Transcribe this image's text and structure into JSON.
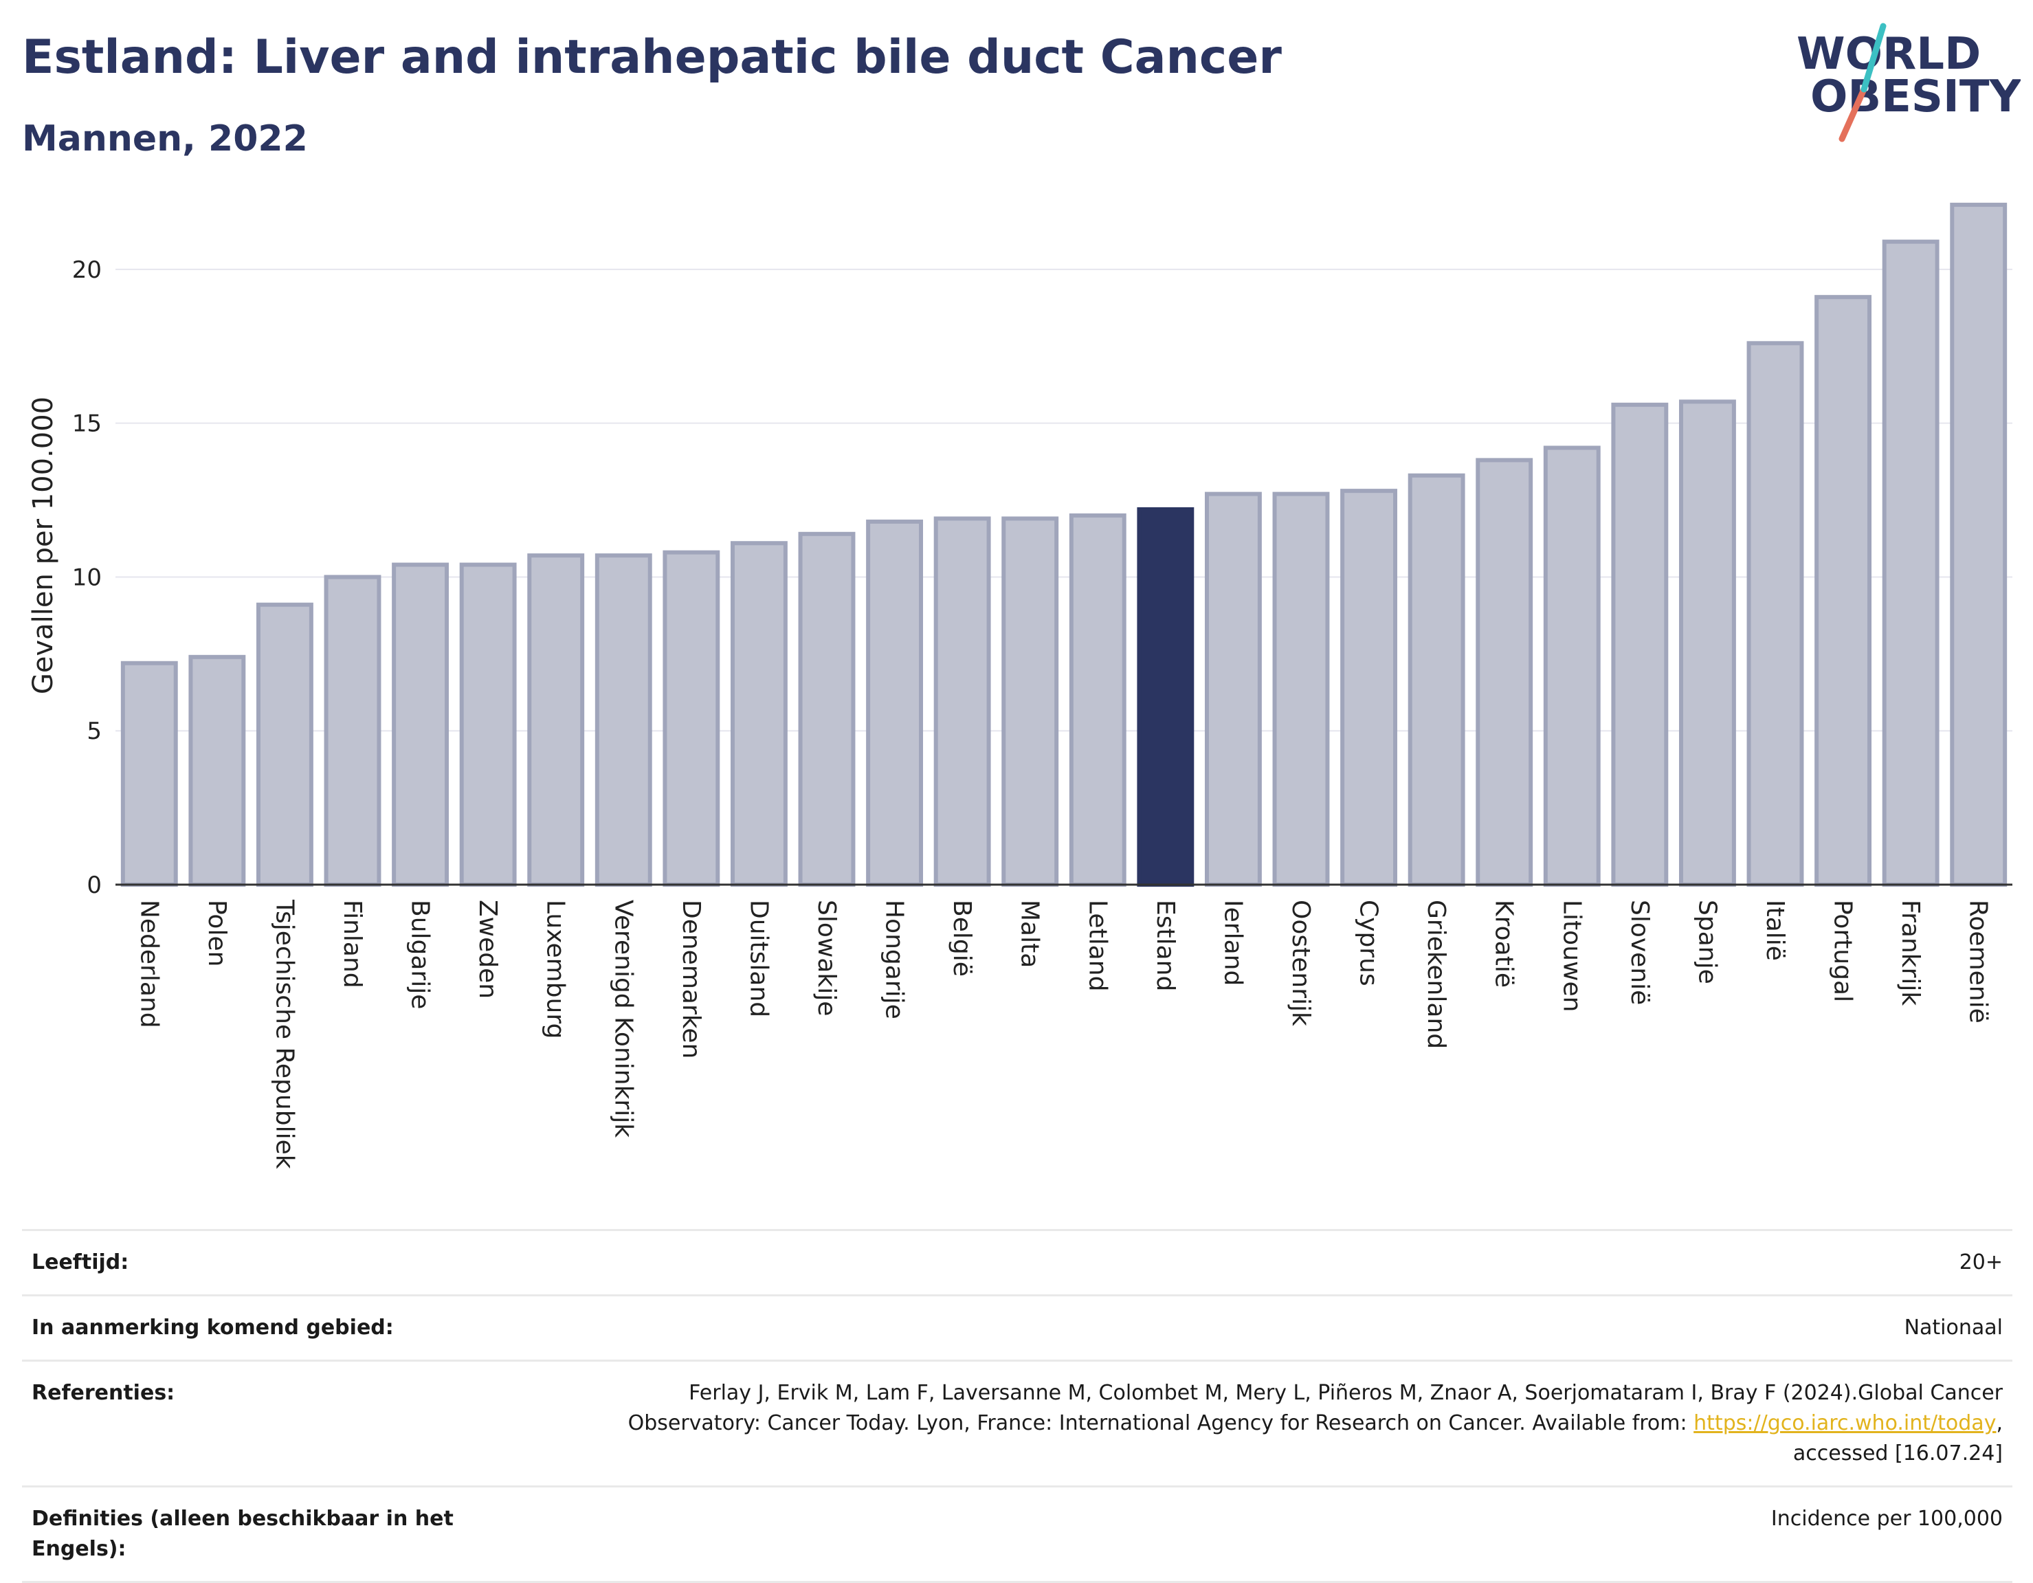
{
  "header": {
    "title": "Estland: Liver and intrahepatic bile duct Cancer",
    "subtitle": "Mannen, 2022"
  },
  "logo": {
    "line1": "WORLD",
    "line2": "OBESITY"
  },
  "colors": {
    "highlight": "#2b3561",
    "bar": "#bfc2d0",
    "bar_stroke": "#a0a5bb",
    "grid": "#e6e6ee"
  },
  "chart_data": {
    "type": "bar",
    "ylabel": "Gevallen per 100.000",
    "xlabel": "",
    "ylim": [
      0,
      22.5
    ],
    "yticks": [
      0,
      5,
      10,
      15,
      20
    ],
    "grid": true,
    "highlight": "Estland",
    "categories": [
      "Nederland",
      "Polen",
      "Tsjechische Republiek",
      "Finland",
      "Bulgarije",
      "Zweden",
      "Luxemburg",
      "Verenigd Koninkrijk",
      "Denemarken",
      "Duitsland",
      "Slowakije",
      "Hongarije",
      "België",
      "Malta",
      "Letland",
      "Estland",
      "Ierland",
      "Oostenrijk",
      "Cyprus",
      "Griekenland",
      "Kroatië",
      "Litouwen",
      "Slovenië",
      "Spanje",
      "Italië",
      "Portugal",
      "Frankrijk",
      "Roemenië"
    ],
    "values": [
      7.2,
      7.4,
      9.1,
      10.0,
      10.4,
      10.4,
      10.7,
      10.7,
      10.8,
      11.1,
      11.4,
      11.8,
      11.9,
      11.9,
      12.0,
      12.2,
      12.7,
      12.7,
      12.8,
      13.3,
      13.8,
      14.2,
      15.6,
      15.7,
      17.6,
      19.1,
      20.9,
      22.1
    ]
  },
  "meta": {
    "age_label": "Leeftijd:",
    "age_value": "20+",
    "area_label": "In aanmerking komend gebied:",
    "area_value": "Nationaal",
    "ref_label": "Referenties:",
    "ref_text1": "Ferlay J, Ervik M, Lam F, Laversanne M, Colombet M, Mery L, Piñeros M, Znaor A, Soerjomataram I, Bray F (2024).Global Cancer",
    "ref_text2": "Observatory: Cancer Today. Lyon, France: International Agency for Research on Cancer. Available from: ",
    "ref_link": "https://gco.iarc.who.int/today",
    "ref_text3": ",",
    "ref_text4": "accessed [16.07.24]",
    "def_label": "Definities (alleen beschikbaar in het Engels):",
    "def_value": "Incidence per 100,000"
  }
}
